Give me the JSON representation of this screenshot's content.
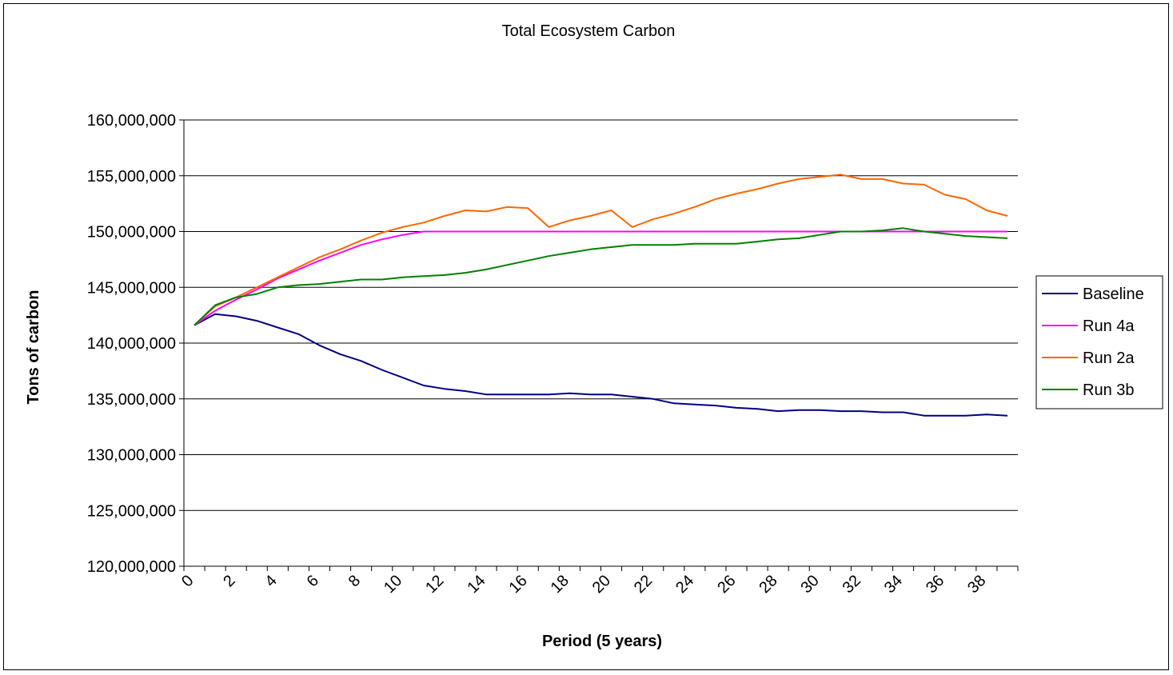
{
  "chart_data": {
    "type": "line",
    "title": "Total Ecosystem Carbon",
    "xlabel": "Period (5 years)",
    "ylabel": "Tons of carbon",
    "ylim": [
      120000000,
      160000000
    ],
    "ytick_step": 5000000,
    "ytick_labels": [
      "120,000,000",
      "125,000,000",
      "130,000,000",
      "135,000,000",
      "140,000,000",
      "145,000,000",
      "150,000,000",
      "155,000,000",
      "160,000,000"
    ],
    "xtick_labels": [
      "0",
      "2",
      "4",
      "6",
      "8",
      "10",
      "12",
      "14",
      "16",
      "18",
      "20",
      "22",
      "24",
      "26",
      "28",
      "30",
      "32",
      "34",
      "36",
      "38"
    ],
    "grid": true,
    "legend_position": "right",
    "series": [
      {
        "name": "Baseline",
        "color": "#000080",
        "values": [
          141600000,
          142600000,
          142400000,
          142000000,
          141400000,
          140800000,
          139800000,
          139000000,
          138400000,
          137600000,
          136900000,
          136200000,
          135900000,
          135700000,
          135400000,
          135400000,
          135400000,
          135400000,
          135500000,
          135400000,
          135400000,
          135200000,
          135000000,
          134600000,
          134500000,
          134400000,
          134200000,
          134100000,
          133900000,
          134000000,
          134000000,
          133900000,
          133900000,
          133800000,
          133800000,
          133500000,
          133500000,
          133500000,
          133600000,
          133500000
        ]
      },
      {
        "name": "Run 4a",
        "color": "#FF00FF",
        "values": [
          141600000,
          142900000,
          143900000,
          144800000,
          145800000,
          146600000,
          147400000,
          148100000,
          148800000,
          149300000,
          149700000,
          150000000,
          150000000,
          150000000,
          150000000,
          150000000,
          150000000,
          150000000,
          150000000,
          150000000,
          150000000,
          150000000,
          150000000,
          150000000,
          150000000,
          150000000,
          150000000,
          150000000,
          150000000,
          150000000,
          150000000,
          150000000,
          150000000,
          150000000,
          150000000,
          150000000,
          150000000,
          150000000,
          150000000,
          150000000
        ]
      },
      {
        "name": "Run 2a",
        "color": "#FF6600",
        "values": [
          141600000,
          143300000,
          144100000,
          145000000,
          145900000,
          146800000,
          147700000,
          148400000,
          149200000,
          149900000,
          150400000,
          150800000,
          151400000,
          151900000,
          151800000,
          152200000,
          152100000,
          150400000,
          151000000,
          151400000,
          151900000,
          150400000,
          151100000,
          151600000,
          152200000,
          152900000,
          153400000,
          153800000,
          154300000,
          154700000,
          154900000,
          155100000,
          154700000,
          154700000,
          154300000,
          154200000,
          153300000,
          152900000,
          151900000,
          151400000
        ]
      },
      {
        "name": "Run 3b",
        "color": "#008000",
        "values": [
          141600000,
          143400000,
          144100000,
          144400000,
          145000000,
          145200000,
          145300000,
          145500000,
          145700000,
          145700000,
          145900000,
          146000000,
          146100000,
          146300000,
          146600000,
          147000000,
          147400000,
          147800000,
          148100000,
          148400000,
          148600000,
          148800000,
          148800000,
          148800000,
          148900000,
          148900000,
          148900000,
          149100000,
          149300000,
          149400000,
          149700000,
          150000000,
          150000000,
          150100000,
          150300000,
          150000000,
          149800000,
          149600000,
          149500000,
          149400000
        ]
      }
    ]
  }
}
